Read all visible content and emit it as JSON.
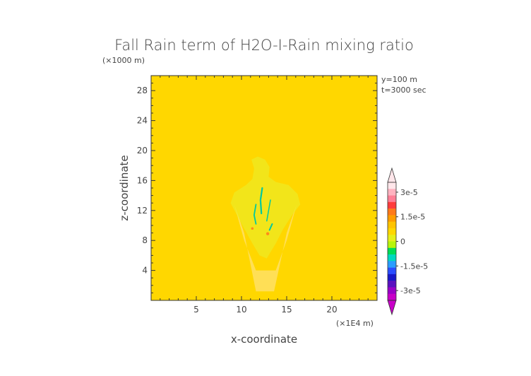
{
  "chart_data": {
    "type": "heatmap",
    "title": "Fall Rain term of H2O-I-Rain mixing ratio",
    "xlabel": "x-coordinate",
    "ylabel": "z-coordinate",
    "x_unit_label": "(×1E4 m)",
    "y_unit_label": "(×1000 m)",
    "annotations": [
      "y=100 m",
      "t=3000 sec"
    ],
    "xlim": [
      0,
      25
    ],
    "ylim": [
      0,
      30
    ],
    "x_ticks": [
      5,
      10,
      15,
      20
    ],
    "y_ticks": [
      4,
      8,
      12,
      16,
      20,
      24,
      28
    ],
    "background_value": 0,
    "background_color": "#ffd700",
    "colorbar": {
      "range": [
        -3.6e-05,
        3.6e-05
      ],
      "tick_labels": [
        "3e-5",
        "1.5e-5",
        "0",
        "-1.5e-5",
        "-3e-5"
      ],
      "tick_values": [
        3e-05,
        1.5e-05,
        0,
        -1.5e-05,
        -3e-05
      ],
      "colors_top_to_bottom": [
        "#ffe6ea",
        "#ffb3c0",
        "#ff7f96",
        "#ff3c3c",
        "#ff7a1a",
        "#ff9d00",
        "#ffc400",
        "#ffd700",
        "#e6ef1a",
        "#b8f50a",
        "#00dd55",
        "#00d9c0",
        "#2a9dff",
        "#2a4dff",
        "#1818c8",
        "#5a10c0",
        "#9a00c8",
        "#c800c8"
      ]
    },
    "features": [
      {
        "name": "light-halo",
        "value": 0,
        "color": "#ffe27a"
      },
      {
        "name": "yellow-plume",
        "value": 2e-06,
        "color": "#e8f030"
      },
      {
        "name": "green-streaks",
        "value": -1.2e-05,
        "color": "#00c8a0"
      },
      {
        "name": "orange-spots",
        "value": 1.2e-05,
        "color": "#ff8a1a"
      }
    ]
  }
}
